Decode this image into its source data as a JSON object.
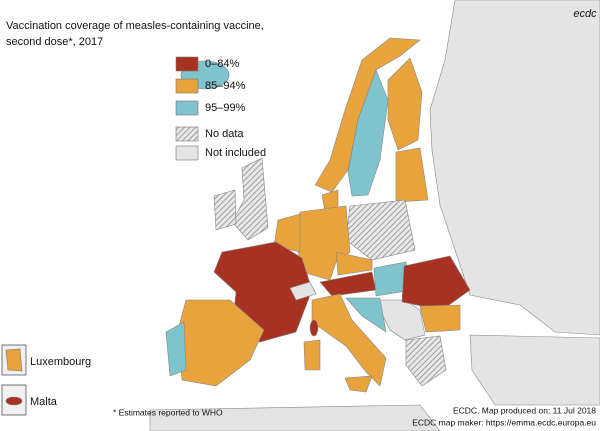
{
  "title": [
    "Vaccination coverage of measles-containing vaccine,",
    "second dose*, 2017"
  ],
  "logo": "ecdc",
  "legend": [
    {
      "label": "0–84%",
      "color": "#a83222"
    },
    {
      "label": "85–94%",
      "color": "#e8a33d"
    },
    {
      "label": "95–99%",
      "color": "#7fc3cd"
    },
    {
      "label": "No data",
      "color": "#9a9a9a",
      "hatched": true
    },
    {
      "label": "Not included",
      "color": "#e4e4e4"
    }
  ],
  "insets": [
    {
      "label": "Luxembourg",
      "legend": 1
    },
    {
      "label": "Malta",
      "legend": 0
    }
  ],
  "footnote": "* Estimates reported to WHO",
  "credits": [
    "ECDC. Map produced on: 11 Jul 2018",
    "ECDC map maker: https://emma.ecdc.europa.eu"
  ]
}
